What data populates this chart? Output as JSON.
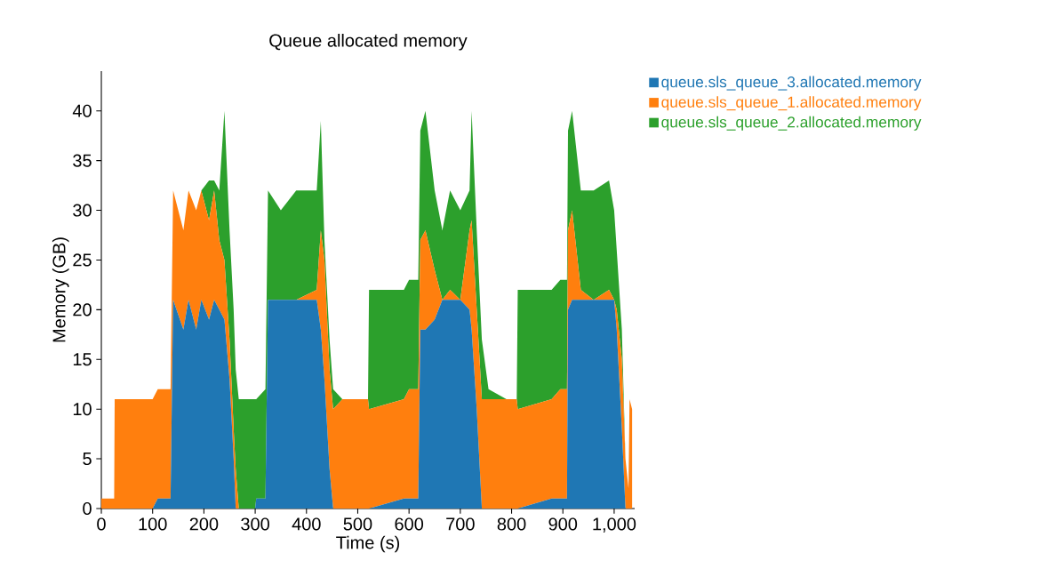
{
  "chart_data": {
    "type": "area",
    "title": "Queue allocated memory",
    "xlabel": "Time (s)",
    "ylabel": "Memory (GB)",
    "stacked": true,
    "legend": "top right",
    "xlim": [
      0,
      1040
    ],
    "ylim": [
      0,
      44
    ],
    "xticks": [
      0,
      100,
      200,
      300,
      400,
      500,
      600,
      700,
      800,
      900,
      {
        "value": 1000,
        "label": "1,000"
      }
    ],
    "yticks": [
      0,
      5,
      10,
      15,
      20,
      25,
      30,
      35,
      40
    ],
    "x": [
      0,
      25,
      26,
      100,
      110,
      135,
      140,
      160,
      170,
      185,
      195,
      210,
      220,
      230,
      240,
      250,
      258,
      262,
      268,
      300,
      302,
      320,
      325,
      350,
      380,
      420,
      428,
      435,
      445,
      452,
      470,
      520,
      522,
      590,
      600,
      618,
      622,
      632,
      650,
      665,
      680,
      700,
      718,
      722,
      732,
      742,
      755,
      790,
      810,
      812,
      878,
      895,
      908,
      910,
      918,
      935,
      960,
      990,
      1000,
      1005,
      1015,
      1022,
      1028,
      1030,
      1035
    ],
    "series": [
      {
        "name": "queue.sls_queue_3.allocated.memory",
        "color": "#1f77b4",
        "values": [
          0,
          0,
          0,
          0,
          1,
          1,
          21,
          18,
          21,
          18,
          21,
          19,
          21,
          20,
          19,
          13,
          5,
          0,
          0,
          0,
          1,
          1,
          21,
          21,
          21,
          21,
          18,
          13,
          4,
          0,
          0,
          0,
          0,
          1,
          1,
          1,
          18,
          18,
          19,
          21,
          21,
          21,
          20,
          18,
          10,
          0,
          0,
          0,
          0,
          0,
          1,
          1,
          1,
          20,
          21,
          21,
          21,
          21,
          21,
          18,
          8,
          0,
          0,
          0,
          0
        ]
      },
      {
        "name": "queue.sls_queue_1.allocated.memory",
        "color": "#ff7f0e",
        "values": [
          1,
          1,
          11,
          11,
          11,
          11,
          11,
          10,
          11,
          12,
          11,
          10,
          11,
          7,
          6,
          4,
          3,
          4,
          0,
          0,
          0,
          0,
          0,
          0,
          0,
          1,
          10,
          12,
          10,
          10,
          11,
          11,
          10,
          10,
          11,
          11,
          9,
          10,
          5,
          0,
          1,
          0,
          8,
          11,
          10,
          11,
          11,
          11,
          11,
          10,
          10,
          11,
          11,
          8,
          9,
          1,
          0,
          1,
          0,
          2,
          7,
          5,
          2,
          11,
          10
        ]
      },
      {
        "name": "queue.sls_queue_2.allocated.memory",
        "color": "#2ca02c",
        "values": [
          0,
          0,
          0,
          0,
          0,
          0,
          0,
          0,
          0,
          0,
          0,
          4,
          1,
          5,
          15,
          11,
          12,
          10,
          11,
          11,
          10,
          11,
          11,
          9,
          11,
          10,
          11,
          2,
          3,
          2,
          0,
          0,
          12,
          11,
          11,
          11,
          11,
          12,
          8,
          7,
          10,
          9,
          4,
          11,
          8,
          6,
          1,
          0,
          0,
          12,
          11,
          11,
          11,
          10,
          10,
          10,
          11,
          11,
          9,
          6,
          3,
          0,
          0,
          0,
          0
        ]
      }
    ]
  }
}
